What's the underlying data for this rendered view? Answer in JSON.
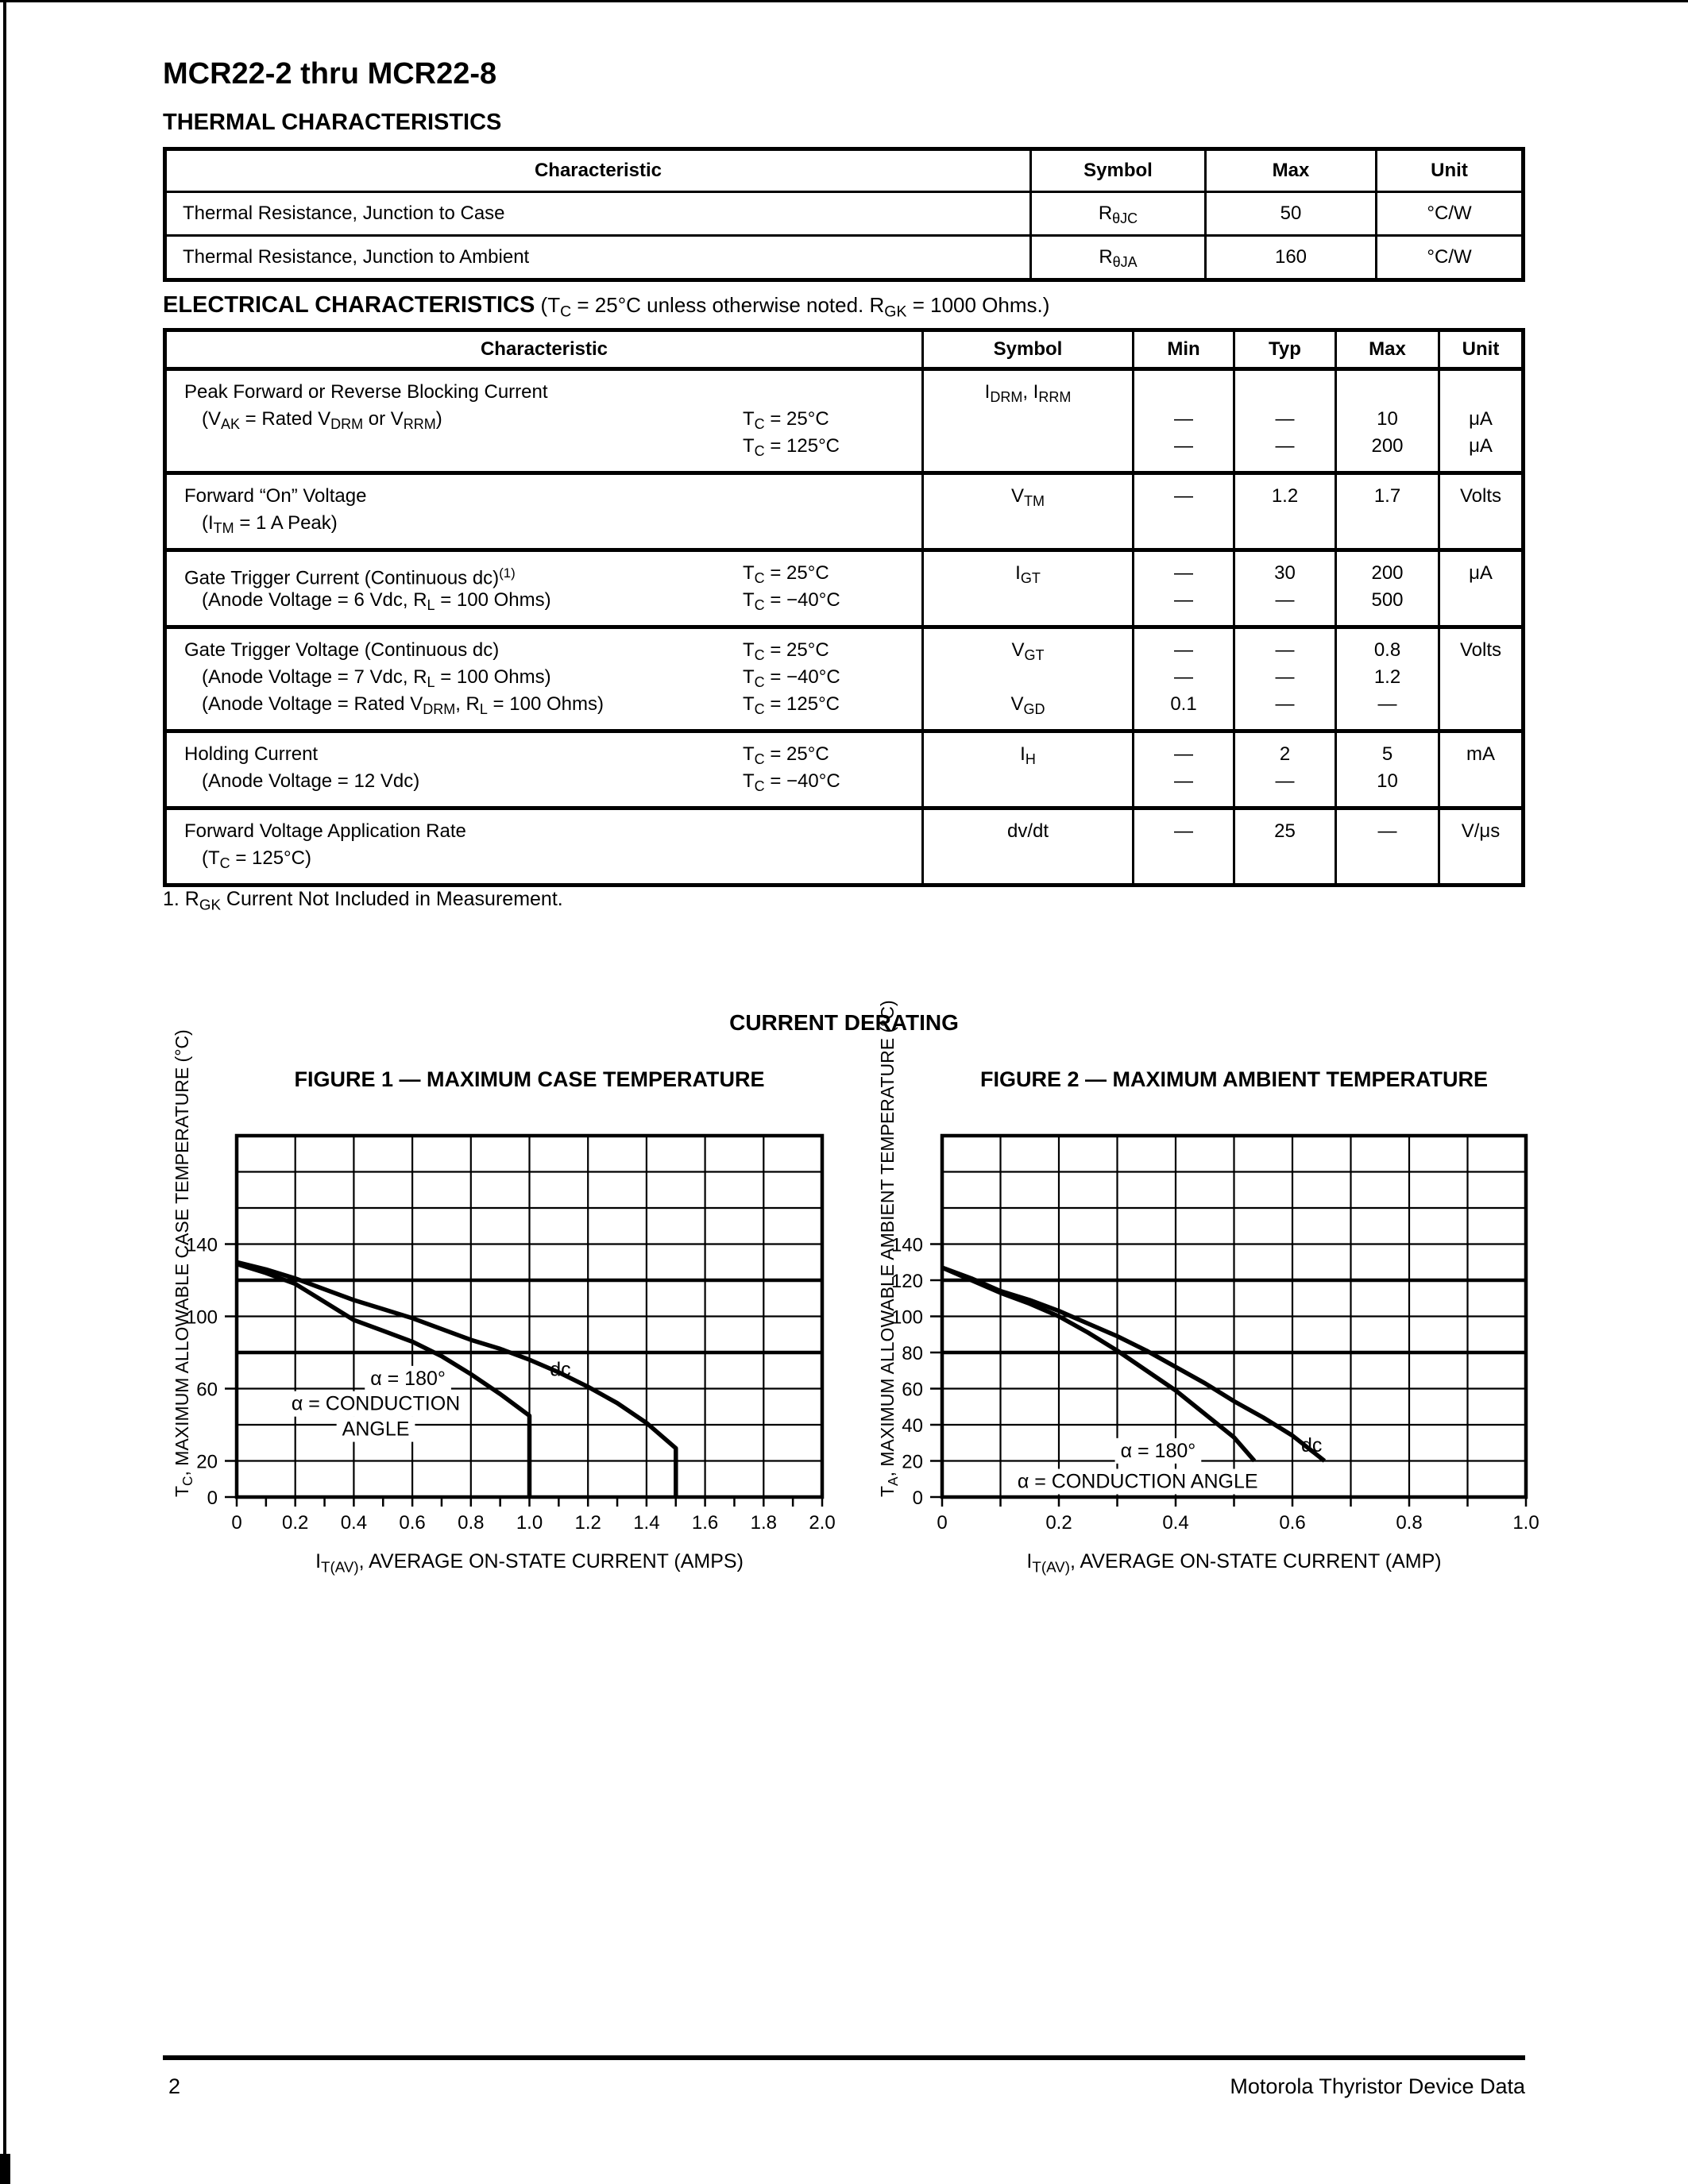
{
  "colors": {
    "ink": "#000000",
    "paper": "#ffffff"
  },
  "page": {
    "title": "MCR22-2 thru MCR22-8",
    "number": "2",
    "footer_right": "Motorola Thyristor Device Data"
  },
  "thermal": {
    "heading": "THERMAL CHARACTERISTICS",
    "columns": [
      "Characteristic",
      "Symbol",
      "Max",
      "Unit"
    ],
    "rows": [
      {
        "characteristic": "Thermal Resistance, Junction to Case",
        "symbol": [
          "R",
          "_θJC"
        ],
        "max": "50",
        "unit": "°C/W"
      },
      {
        "characteristic": "Thermal Resistance, Junction to Ambient",
        "symbol": [
          "R",
          "_θJA"
        ],
        "max": "160",
        "unit": "°C/W"
      }
    ]
  },
  "electrical": {
    "heading_bold": "ELECTRICAL CHARACTERISTICS",
    "heading_rest": [
      " (T",
      "_C",
      " = 25°C unless otherwise noted. R",
      "_GK",
      " = 1000 Ohms.)"
    ],
    "columns": [
      "Characteristic",
      "Symbol",
      "Min",
      "Typ",
      "Max",
      "Unit"
    ],
    "rows": [
      {
        "lines": [
          {
            "char": [
              "Peak Forward or Reverse Blocking Current"
            ],
            "sym": [
              "I",
              "_DRM",
              ", I",
              "_RRM"
            ]
          },
          {
            "char": [
              "(V",
              "_AK",
              " = Rated V",
              "_DRM",
              " or V",
              "_RRM",
              ")"
            ],
            "indent": true,
            "cond": [
              "T",
              "_C",
              " = 25°C"
            ],
            "min": "—",
            "typ": "—",
            "max": "10",
            "unit": "μA"
          },
          {
            "cond": [
              "T",
              "_C",
              " = 125°C"
            ],
            "min": "—",
            "typ": "—",
            "max": "200",
            "unit": "μA"
          }
        ]
      },
      {
        "lines": [
          {
            "char": [
              "Forward “On” Voltage"
            ],
            "sym": [
              "V",
              "_TM"
            ],
            "min": "—",
            "typ": "1.2",
            "max": "1.7",
            "unit": "Volts"
          },
          {
            "char": [
              "(I",
              "_TM",
              " = 1 A Peak)"
            ],
            "indent": true
          }
        ]
      },
      {
        "lines": [
          {
            "char": [
              "Gate Trigger Current (Continuous dc)",
              "^(1)"
            ],
            "cond": [
              "T",
              "_C",
              " = 25°C"
            ],
            "sym": [
              "I",
              "_GT"
            ],
            "min": "—",
            "typ": "30",
            "max": "200",
            "unit": "μA"
          },
          {
            "char": [
              "(Anode Voltage = 6 Vdc, R",
              "_L",
              " = 100 Ohms)"
            ],
            "indent": true,
            "cond": [
              "T",
              "_C",
              " = −40°C"
            ],
            "min": "—",
            "typ": "—",
            "max": "500"
          }
        ]
      },
      {
        "lines": [
          {
            "char": [
              "Gate Trigger Voltage (Continuous dc)"
            ],
            "cond": [
              "T",
              "_C",
              " = 25°C"
            ],
            "sym": [
              "V",
              "_GT"
            ],
            "min": "—",
            "typ": "—",
            "max": "0.8",
            "unit": "Volts"
          },
          {
            "char": [
              "(Anode Voltage = 7 Vdc, R",
              "_L",
              " = 100 Ohms)"
            ],
            "indent": true,
            "cond": [
              "T",
              "_C",
              " = −40°C"
            ],
            "min": "—",
            "typ": "—",
            "max": "1.2"
          },
          {
            "char": [
              "(Anode Voltage = Rated V",
              "_DRM",
              ", R",
              "_L",
              " = 100 Ohms)"
            ],
            "indent": true,
            "cond": [
              "T",
              "_C",
              " = 125°C"
            ],
            "sym": [
              "V",
              "_GD"
            ],
            "min": "0.1",
            "typ": "—",
            "max": "—"
          }
        ]
      },
      {
        "lines": [
          {
            "char": [
              "Holding Current"
            ],
            "cond": [
              "T",
              "_C",
              " = 25°C"
            ],
            "sym": [
              "I",
              "_H"
            ],
            "min": "—",
            "typ": "2",
            "max": "5",
            "unit": "mA"
          },
          {
            "char": [
              "(Anode Voltage = 12 Vdc)"
            ],
            "indent": true,
            "cond": [
              "T",
              "_C",
              " = −40°C"
            ],
            "min": "—",
            "typ": "—",
            "max": "10"
          }
        ]
      },
      {
        "lines": [
          {
            "char": [
              "Forward Voltage Application Rate"
            ],
            "sym": [
              "dv/dt"
            ],
            "min": "—",
            "typ": "25",
            "max": "—",
            "unit": "V/μs"
          },
          {
            "char": [
              "(T",
              "_C",
              " = 125°C)"
            ],
            "indent": true
          }
        ]
      }
    ]
  },
  "footnote": [
    "1. R",
    "_GK",
    " Current Not Included in Measurement."
  ],
  "derating_heading": "CURRENT DERATING",
  "chart_data": [
    {
      "type": "line",
      "title": "FIGURE 1 — MAXIMUM CASE TEMPERATURE",
      "xlabel": [
        "I",
        "_T(AV)",
        ", AVERAGE ON-STATE CURRENT (AMPS)"
      ],
      "ylabel": [
        "T",
        "_C",
        ", MAXIMUM ALLOWABLE CASE TEMPERATURE (°C)"
      ],
      "xlim": [
        0,
        2.0
      ],
      "ylim": [
        0,
        200
      ],
      "x_gridstep": 0.2,
      "y_gridstep": 20,
      "x_minorstep": 0.1,
      "grid": "on",
      "legend": "none",
      "thick_ylines": [
        80,
        120
      ],
      "x_ticks": [
        {
          "v": 0,
          "l": "0"
        },
        {
          "v": 0.2,
          "l": "0.2"
        },
        {
          "v": 0.4,
          "l": "0.4"
        },
        {
          "v": 0.6,
          "l": "0.6"
        },
        {
          "v": 0.8,
          "l": "0.8"
        },
        {
          "v": 1.0,
          "l": "1.0"
        },
        {
          "v": 1.2,
          "l": "1.2"
        },
        {
          "v": 1.4,
          "l": "1.4"
        },
        {
          "v": 1.6,
          "l": "1.6"
        },
        {
          "v": 1.8,
          "l": "1.8"
        },
        {
          "v": 2.0,
          "l": "2.0"
        }
      ],
      "y_ticks": [
        {
          "v": 0,
          "l": "0"
        },
        {
          "v": 20,
          "l": "20"
        },
        {
          "v": 60,
          "l": "60"
        },
        {
          "v": 100,
          "l": "100"
        },
        {
          "v": 140,
          "l": "140"
        }
      ],
      "series": [
        {
          "id": "dc",
          "name": "dc",
          "points": [
            [
              0,
              130
            ],
            [
              0.1,
              126
            ],
            [
              0.2,
              121
            ],
            [
              0.3,
              115
            ],
            [
              0.4,
              109
            ],
            [
              0.5,
              104
            ],
            [
              0.6,
              99
            ],
            [
              0.7,
              93
            ],
            [
              0.8,
              87
            ],
            [
              0.9,
              82
            ],
            [
              1.0,
              76
            ],
            [
              1.1,
              69
            ],
            [
              1.2,
              61
            ],
            [
              1.3,
              52
            ],
            [
              1.4,
              41
            ],
            [
              1.5,
              27
            ],
            [
              1.5,
              0
            ]
          ]
        },
        {
          "id": "alpha-180",
          "name": "α = 180°",
          "points": [
            [
              0,
              129
            ],
            [
              0.1,
              124
            ],
            [
              0.2,
              118
            ],
            [
              0.3,
              108
            ],
            [
              0.4,
              98
            ],
            [
              0.5,
              92
            ],
            [
              0.6,
              86
            ],
            [
              0.7,
              78
            ],
            [
              0.8,
              68
            ],
            [
              0.9,
              57
            ],
            [
              1.0,
              45
            ],
            [
              1.0,
              0
            ]
          ]
        }
      ],
      "annotations": [
        {
          "text": "α = 180°",
          "x": 0.585,
          "y": 66,
          "anchor": "middle"
        },
        {
          "text": "α = CONDUCTION",
          "x": 0.475,
          "y": 52,
          "anchor": "middle"
        },
        {
          "text": "ANGLE",
          "x": 0.475,
          "y": 38,
          "anchor": "middle"
        },
        {
          "text": "dc",
          "x": 1.07,
          "y": 71,
          "anchor": "start"
        }
      ]
    },
    {
      "type": "line",
      "title": "FIGURE 2 — MAXIMUM AMBIENT TEMPERATURE",
      "xlabel": [
        "I",
        "_T(AV)",
        ", AVERAGE ON-STATE CURRENT (AMP)"
      ],
      "ylabel": [
        "T",
        "_A",
        ", MAXIMUM ALLOWABLE AMBIENT TEMPERATURE (°C)"
      ],
      "xlim": [
        0,
        1.0
      ],
      "ylim": [
        0,
        200
      ],
      "x_gridstep": 0.1,
      "y_gridstep": 20,
      "x_minorstep": 0.1,
      "grid": "on",
      "legend": "none",
      "thick_ylines": [
        80,
        120
      ],
      "x_ticks": [
        {
          "v": 0,
          "l": "0"
        },
        {
          "v": 0.2,
          "l": "0.2"
        },
        {
          "v": 0.4,
          "l": "0.4"
        },
        {
          "v": 0.6,
          "l": "0.6"
        },
        {
          "v": 0.8,
          "l": "0.8"
        },
        {
          "v": 1.0,
          "l": "1.0"
        }
      ],
      "y_ticks": [
        {
          "v": 0,
          "l": "0"
        },
        {
          "v": 20,
          "l": "20"
        },
        {
          "v": 40,
          "l": "40"
        },
        {
          "v": 60,
          "l": "60"
        },
        {
          "v": 80,
          "l": "80"
        },
        {
          "v": 100,
          "l": "100"
        },
        {
          "v": 120,
          "l": "120"
        },
        {
          "v": 140,
          "l": "140"
        }
      ],
      "series": [
        {
          "id": "dc",
          "name": "dc",
          "points": [
            [
              0,
              127
            ],
            [
              0.05,
              121
            ],
            [
              0.1,
              114
            ],
            [
              0.15,
              109
            ],
            [
              0.2,
              103
            ],
            [
              0.25,
              96
            ],
            [
              0.3,
              89
            ],
            [
              0.35,
              81
            ],
            [
              0.4,
              72
            ],
            [
              0.45,
              63
            ],
            [
              0.5,
              53
            ],
            [
              0.55,
              44
            ],
            [
              0.6,
              34
            ],
            [
              0.655,
              20
            ]
          ]
        },
        {
          "id": "alpha-180",
          "name": "α = 180°",
          "points": [
            [
              0,
              127
            ],
            [
              0.05,
              120
            ],
            [
              0.1,
              113
            ],
            [
              0.15,
              107
            ],
            [
              0.2,
              100
            ],
            [
              0.25,
              91
            ],
            [
              0.3,
              81
            ],
            [
              0.35,
              70
            ],
            [
              0.4,
              59
            ],
            [
              0.45,
              46
            ],
            [
              0.5,
              33
            ],
            [
              0.535,
              20
            ]
          ]
        }
      ],
      "annotations": [
        {
          "text": "α = 180°",
          "x": 0.37,
          "y": 26,
          "anchor": "middle"
        },
        {
          "text": "α = CONDUCTION ANGLE",
          "x": 0.335,
          "y": 9,
          "anchor": "middle"
        },
        {
          "text": "dc",
          "x": 0.615,
          "y": 29,
          "anchor": "start"
        }
      ]
    }
  ]
}
